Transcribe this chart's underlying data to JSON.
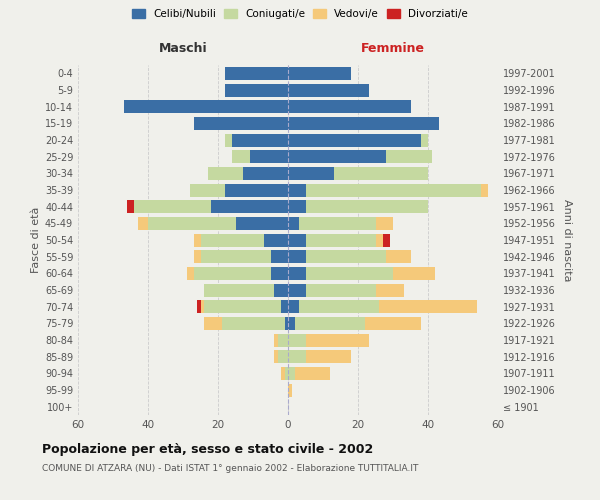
{
  "age_groups": [
    "100+",
    "95-99",
    "90-94",
    "85-89",
    "80-84",
    "75-79",
    "70-74",
    "65-69",
    "60-64",
    "55-59",
    "50-54",
    "45-49",
    "40-44",
    "35-39",
    "30-34",
    "25-29",
    "20-24",
    "15-19",
    "10-14",
    "5-9",
    "0-4"
  ],
  "birth_years": [
    "≤ 1901",
    "1902-1906",
    "1907-1911",
    "1912-1916",
    "1917-1921",
    "1922-1926",
    "1927-1931",
    "1932-1936",
    "1937-1941",
    "1942-1946",
    "1947-1951",
    "1952-1956",
    "1957-1961",
    "1962-1966",
    "1967-1971",
    "1972-1976",
    "1977-1981",
    "1982-1986",
    "1987-1991",
    "1992-1996",
    "1997-2001"
  ],
  "maschi": {
    "celibi": [
      0,
      0,
      0,
      0,
      0,
      1,
      2,
      4,
      5,
      5,
      7,
      15,
      22,
      18,
      13,
      11,
      16,
      27,
      47,
      18,
      18
    ],
    "coniugati": [
      0,
      0,
      1,
      3,
      3,
      18,
      22,
      20,
      22,
      20,
      18,
      25,
      22,
      10,
      10,
      5,
      2,
      0,
      0,
      0,
      0
    ],
    "vedovi": [
      0,
      0,
      1,
      1,
      1,
      5,
      1,
      0,
      2,
      2,
      2,
      3,
      0,
      0,
      0,
      0,
      0,
      0,
      0,
      0,
      0
    ],
    "divorziati": [
      0,
      0,
      0,
      0,
      0,
      0,
      1,
      0,
      0,
      0,
      0,
      0,
      2,
      0,
      0,
      0,
      0,
      0,
      0,
      0,
      0
    ]
  },
  "femmine": {
    "nubili": [
      0,
      0,
      0,
      0,
      0,
      2,
      3,
      5,
      5,
      5,
      5,
      3,
      5,
      5,
      13,
      28,
      38,
      43,
      35,
      23,
      18
    ],
    "coniugate": [
      0,
      0,
      2,
      5,
      5,
      20,
      23,
      20,
      25,
      23,
      20,
      22,
      35,
      50,
      27,
      13,
      2,
      0,
      0,
      0,
      0
    ],
    "vedove": [
      0,
      1,
      10,
      13,
      18,
      16,
      28,
      8,
      12,
      7,
      2,
      5,
      0,
      2,
      0,
      0,
      0,
      0,
      0,
      0,
      0
    ],
    "divorziate": [
      0,
      0,
      0,
      0,
      0,
      0,
      0,
      0,
      0,
      0,
      2,
      0,
      0,
      0,
      0,
      0,
      0,
      0,
      0,
      0,
      0
    ]
  },
  "colors": {
    "celibi": "#3a6ea5",
    "coniugati": "#c5d9a0",
    "vedovi": "#f5c97a",
    "divorziati": "#cc2222"
  },
  "xlim": 60,
  "title": "Popolazione per età, sesso e stato civile - 2002",
  "subtitle": "COMUNE DI ATZARA (NU) - Dati ISTAT 1° gennaio 2002 - Elaborazione TUTTITALIA.IT",
  "ylabel_left": "Fasce di età",
  "ylabel_right": "Anni di nascita",
  "xlabel_maschi": "Maschi",
  "xlabel_femmine": "Femmine",
  "legend_labels": [
    "Celibi/Nubili",
    "Coniugati/e",
    "Vedovi/e",
    "Divorziati/e"
  ],
  "background_color": "#f0f0eb",
  "grid_color": "#cccccc"
}
